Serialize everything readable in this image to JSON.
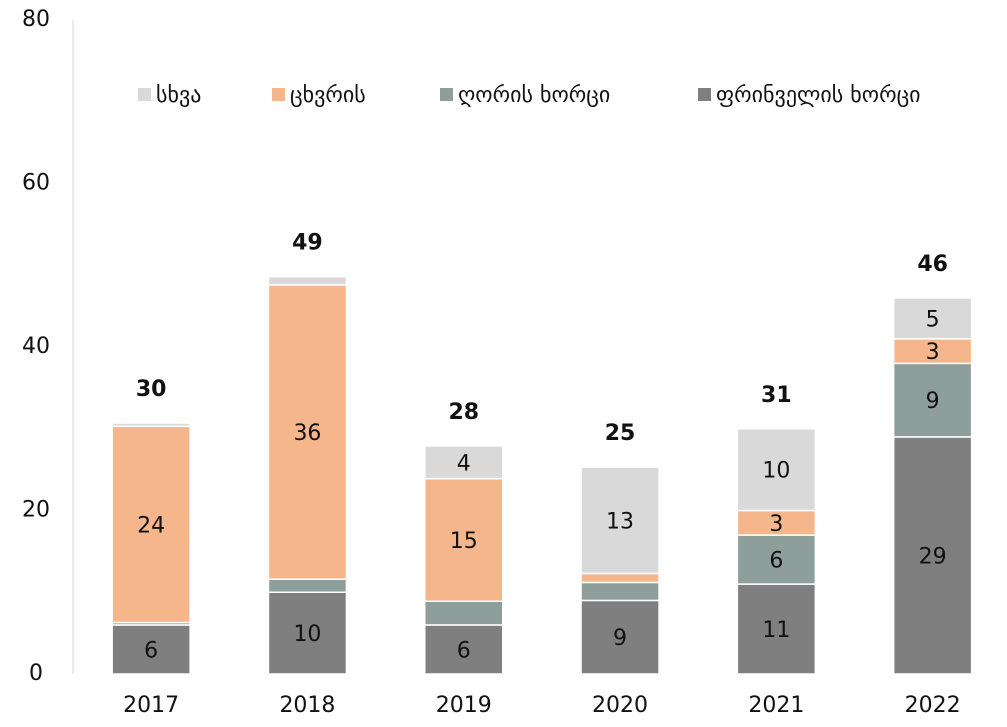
{
  "chart_data": {
    "type": "stacked_bar",
    "categories": [
      "2017",
      "2018",
      "2019",
      "2020",
      "2021",
      "2022"
    ],
    "series": [
      {
        "name": "ფრინველის ხორცი",
        "color": "#7f7f7f",
        "values": [
          6,
          10,
          6,
          9,
          11,
          29
        ],
        "value_labels": [
          "6",
          "10",
          "6",
          "9",
          "11",
          "29"
        ]
      },
      {
        "name": "ღორის ხორცი",
        "color": "#8e9e9b",
        "values": [
          0.3,
          1.6,
          2.9,
          2.2,
          6,
          9
        ],
        "value_labels": [
          null,
          null,
          null,
          null,
          "6",
          "9"
        ]
      },
      {
        "name": "ცხვრის",
        "color": "#f4b68a",
        "values": [
          24,
          36,
          15,
          1.1,
          3,
          3
        ],
        "value_labels": [
          "24",
          "36",
          "15",
          null,
          "3",
          "3"
        ]
      },
      {
        "name": "სხვა",
        "color": "#d9d9d9",
        "values": [
          0.4,
          1,
          4,
          13,
          10,
          5
        ],
        "value_labels": [
          null,
          null,
          "4",
          "13",
          "10",
          "5"
        ]
      }
    ],
    "totals": [
      "30",
      "49",
      "28",
      "25",
      "31",
      "46"
    ],
    "ylim": [
      0,
      80
    ],
    "yticks": [
      0,
      20,
      40,
      60,
      80
    ],
    "grid": false,
    "legend": "top"
  }
}
